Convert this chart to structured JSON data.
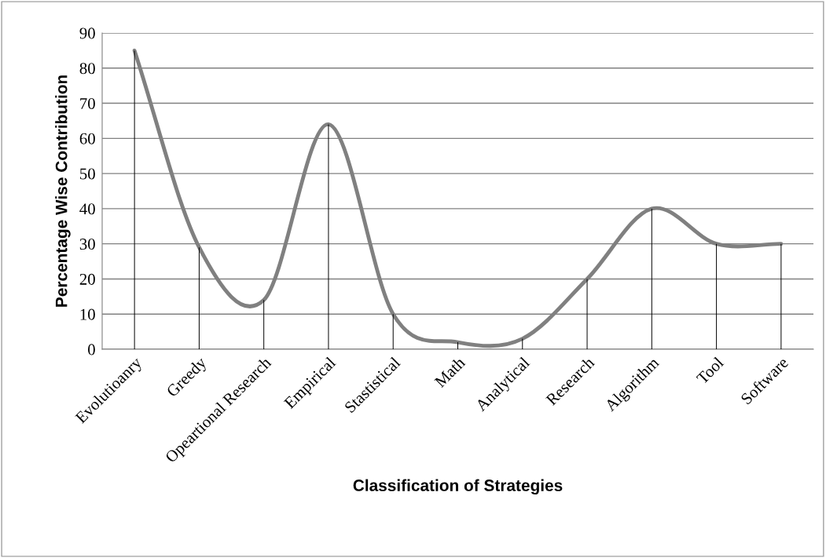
{
  "chart_data": {
    "type": "line",
    "xlabel": "Classification of Strategies",
    "ylabel": "Percentage Wise Contribution",
    "categories": [
      "Evolutioanry",
      "Greedy",
      "Opeartional Research",
      "Empirical",
      "Stastistical",
      "Math",
      "Analytical",
      "Research",
      "Algorithm",
      "Tool",
      "Software"
    ],
    "series": [
      {
        "type": "bar",
        "color": "#000000",
        "values": [
          85,
          29,
          14,
          64,
          10,
          2,
          3,
          20,
          40,
          30,
          30
        ]
      },
      {
        "color": "#808080",
        "marker": "none",
        "line_style": "solid",
        "values": [
          85,
          29,
          14,
          64,
          10,
          2,
          3,
          20,
          40,
          30,
          30
        ]
      }
    ],
    "ylim": [
      0,
      90
    ],
    "yticks": [
      0,
      10,
      20,
      30,
      40,
      50,
      60,
      70,
      80,
      90
    ],
    "grid": "y",
    "legend": false
  }
}
